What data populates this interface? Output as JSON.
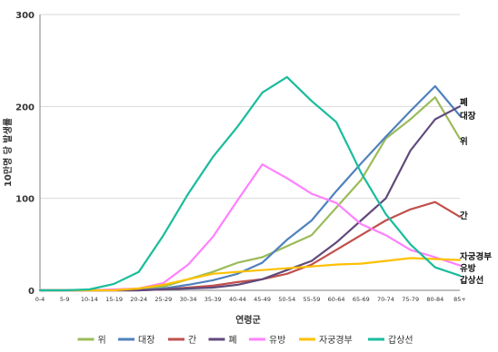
{
  "chart_data": {
    "type": "line",
    "xlabel": "연령군",
    "ylabel": "10만명 당 발생률",
    "ylim": [
      0,
      300
    ],
    "yticks": [
      0,
      100,
      200,
      300
    ],
    "grid": "horizontal",
    "legend_position": "bottom",
    "categories": [
      "0-4",
      "5-9",
      "10-14",
      "15-19",
      "20-24",
      "25-29",
      "30-34",
      "35-39",
      "40-44",
      "45-49",
      "50-54",
      "55-59",
      "60-64",
      "65-69",
      "70-74",
      "75-79",
      "80-84",
      "85+"
    ],
    "series": [
      {
        "name": "위",
        "color": "#9bbb59",
        "end_label": "위",
        "values": [
          0,
          0,
          0,
          0,
          1,
          4,
          12,
          20,
          30,
          36,
          48,
          60,
          90,
          120,
          165,
          186,
          210,
          165
        ]
      },
      {
        "name": "대장",
        "color": "#4f81bd",
        "end_label": "대장",
        "values": [
          0,
          0,
          0,
          0,
          0,
          2,
          6,
          11,
          18,
          30,
          55,
          76,
          108,
          138,
          167,
          195,
          222,
          190
        ]
      },
      {
        "name": "간",
        "color": "#c0504d",
        "end_label": "간",
        "values": [
          0,
          0,
          0,
          0,
          0,
          1,
          3,
          5,
          9,
          12,
          18,
          28,
          44,
          60,
          76,
          88,
          96,
          80
        ]
      },
      {
        "name": "폐",
        "color": "#604a7b",
        "end_label": "폐",
        "values": [
          0,
          0,
          0,
          0,
          0,
          1,
          2,
          3,
          6,
          12,
          22,
          32,
          52,
          76,
          100,
          152,
          186,
          200
        ]
      },
      {
        "name": "유방",
        "color": "#ff80ff",
        "end_label": "유방",
        "values": [
          0,
          0,
          0,
          1,
          2,
          8,
          28,
          58,
          98,
          137,
          122,
          105,
          95,
          72,
          60,
          44,
          36,
          27
        ]
      },
      {
        "name": "자궁경부",
        "color": "#ffc000",
        "end_label": "자궁경부",
        "values": [
          0,
          0,
          0,
          0,
          2,
          6,
          12,
          18,
          20,
          22,
          24,
          26,
          28,
          29,
          32,
          35,
          34,
          33
        ]
      },
      {
        "name": "갑상선",
        "color": "#1abc9c",
        "end_label": "갑상선",
        "values": [
          0,
          0,
          1,
          7,
          20,
          60,
          105,
          145,
          178,
          215,
          232,
          206,
          183,
          128,
          83,
          50,
          25,
          16
        ]
      }
    ]
  }
}
